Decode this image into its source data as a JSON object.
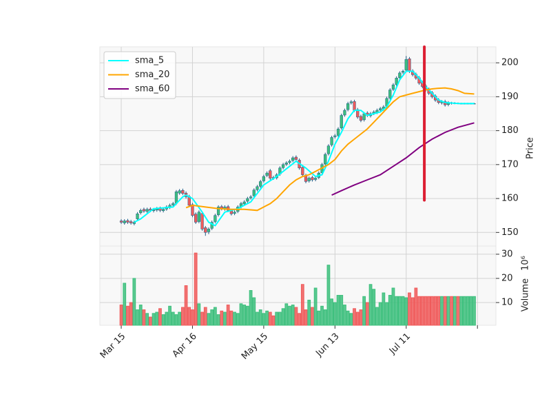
{
  "chart_data": {
    "type": "candlestick",
    "ylabel": "Price",
    "ylim": [
      146,
      204.7
    ],
    "yticks": [
      150,
      160,
      170,
      180,
      190,
      200
    ],
    "xlim": [
      -6.6,
      115.7
    ],
    "xticks": [
      {
        "value": 0,
        "label": "Mar 15"
      },
      {
        "value": 22,
        "label": "Apr 16"
      },
      {
        "value": 44,
        "label": "May 15"
      },
      {
        "value": 66,
        "label": "Jun 13"
      },
      {
        "value": 88,
        "label": "Jul 11"
      },
      {
        "value": 110,
        "label": null
      }
    ],
    "grid": true,
    "legend": "upper left",
    "up_color": "#3dbf7d",
    "down_color": "#f05a5a",
    "wick_color": "#1f5a85",
    "open": [
      153.4,
      152.8,
      153.5,
      153.2,
      152.6,
      154.0,
      155.8,
      156.8,
      156.2,
      156.9,
      156.4,
      156.6,
      157.1,
      156.4,
      156.9,
      157.4,
      158.1,
      158.6,
      161.6,
      162.4,
      161.6,
      160.6,
      158.2,
      155.4,
      153.2,
      155.6,
      151.4,
      150.2,
      151.2,
      153.2,
      155.2,
      157.6,
      156.9,
      157.6,
      156.4,
      155.6,
      156.2,
      157.6,
      158.4,
      159.2,
      160.2,
      160.8,
      162.6,
      163.6,
      165.2,
      166.8,
      168.2,
      166.2,
      166.1,
      167.2,
      169.1,
      170.1,
      170.6,
      171.2,
      172.2,
      171.3,
      169.2,
      166.8,
      165.2,
      166.2,
      165.6,
      166.2,
      167.6,
      170.2,
      173.2,
      175.8,
      178.2,
      178.6,
      180.8,
      184.6,
      186.2,
      188.2,
      188.6,
      186.2,
      184.2,
      183.2,
      185.2,
      184.4,
      185.1,
      185.4,
      186.1,
      186.4,
      187.2,
      189.6,
      192.2,
      193.6,
      195.6,
      197.2,
      197.8,
      201.2,
      197.6,
      196.6,
      195.6,
      194.2,
      193.2,
      192.2,
      191.2,
      190.2,
      189.1,
      188.2,
      188.6,
      187.7,
      188.2,
      188.0,
      188.1,
      188.0,
      188.0,
      188.0,
      188.0,
      188.0
    ],
    "high": [
      153.9,
      153.9,
      154.0,
      153.7,
      153.5,
      156.0,
      157.0,
      157.3,
      157.3,
      157.4,
      157.2,
      157.5,
      157.6,
      157.3,
      158.0,
      158.5,
      159.0,
      162.5,
      162.8,
      162.9,
      162.1,
      161.1,
      158.7,
      155.9,
      156.5,
      156.1,
      151.9,
      151.5,
      153.5,
      155.5,
      158.0,
      158.1,
      158.0,
      158.1,
      156.9,
      156.5,
      158.0,
      159.0,
      159.5,
      160.5,
      161.0,
      163.0,
      164.0,
      165.5,
      167.0,
      168.0,
      168.7,
      166.7,
      167.5,
      169.5,
      170.5,
      171.0,
      171.5,
      172.5,
      172.7,
      171.8,
      169.7,
      167.3,
      166.5,
      166.7,
      166.5,
      168.0,
      170.5,
      173.5,
      176.0,
      178.5,
      179.0,
      181.0,
      185.0,
      186.5,
      188.5,
      189.0,
      189.1,
      186.7,
      184.7,
      185.5,
      185.7,
      185.5,
      186.0,
      186.5,
      187.0,
      187.5,
      190.0,
      192.5,
      194.0,
      196.0,
      197.5,
      198.0,
      202.0,
      201.7,
      198.1,
      197.1,
      196.1,
      194.7,
      193.7,
      192.7,
      191.7,
      190.7,
      189.6,
      189.0,
      189.1,
      188.7,
      188.5,
      188.4,
      188.3,
      188.2,
      188.2,
      188.2,
      188.2,
      188.2
    ],
    "low": [
      152.5,
      152.3,
      152.5,
      152.3,
      152.1,
      153.5,
      155.3,
      155.8,
      155.7,
      156.0,
      155.9,
      156.1,
      156.0,
      155.9,
      156.4,
      156.9,
      157.6,
      158.1,
      161.1,
      161.0,
      160.0,
      157.5,
      154.5,
      152.5,
      152.7,
      150.5,
      149.0,
      149.5,
      150.7,
      152.7,
      154.7,
      156.5,
      156.4,
      156.0,
      155.0,
      155.1,
      155.7,
      157.1,
      157.9,
      158.7,
      159.7,
      160.3,
      162.1,
      163.1,
      164.7,
      166.3,
      165.5,
      165.5,
      165.6,
      166.7,
      168.6,
      169.6,
      170.1,
      170.7,
      171.0,
      168.5,
      166.5,
      164.5,
      164.7,
      165.0,
      165.1,
      165.7,
      167.1,
      169.7,
      172.7,
      175.3,
      177.7,
      178.1,
      180.3,
      184.1,
      185.7,
      187.7,
      185.5,
      183.5,
      182.5,
      182.7,
      184.0,
      183.9,
      184.6,
      184.9,
      185.6,
      185.9,
      186.7,
      189.1,
      191.7,
      193.1,
      195.1,
      196.7,
      197.3,
      197.0,
      196.0,
      195.0,
      193.5,
      192.5,
      191.5,
      190.5,
      189.5,
      188.5,
      187.8,
      187.7,
      187.1,
      187.2,
      187.7,
      187.8,
      187.8,
      187.8,
      187.8,
      187.8,
      187.8,
      187.8
    ],
    "close": [
      153.0,
      153.4,
      153.0,
      152.8,
      153.0,
      155.5,
      156.5,
      156.3,
      156.8,
      156.5,
      156.7,
      157.0,
      156.5,
      156.8,
      157.5,
      158.0,
      158.5,
      162.0,
      162.3,
      161.5,
      160.5,
      158.0,
      155.0,
      153.0,
      156.0,
      151.0,
      150.0,
      151.0,
      153.0,
      155.0,
      157.5,
      157.0,
      157.5,
      156.5,
      155.5,
      156.0,
      157.5,
      158.5,
      159.0,
      160.0,
      160.5,
      162.5,
      163.5,
      165.0,
      166.5,
      167.5,
      166.0,
      166.0,
      167.0,
      169.0,
      170.0,
      170.5,
      171.0,
      172.0,
      171.5,
      169.0,
      167.0,
      165.0,
      166.0,
      165.5,
      166.0,
      167.5,
      170.0,
      173.0,
      175.5,
      178.0,
      178.5,
      180.5,
      184.5,
      186.0,
      188.0,
      188.5,
      186.0,
      184.0,
      183.0,
      185.0,
      184.5,
      185.0,
      185.5,
      186.0,
      186.5,
      187.0,
      189.5,
      192.0,
      193.5,
      195.5,
      197.0,
      197.5,
      201.0,
      197.5,
      196.5,
      195.5,
      194.0,
      193.0,
      192.0,
      191.0,
      190.0,
      189.0,
      188.3,
      188.5,
      187.6,
      188.2,
      188.0,
      188.1,
      188.0,
      188.0,
      188.0,
      188.0,
      188.0,
      188.0
    ],
    "volume": {
      "label": "Volume",
      "offset_label": "10⁶",
      "ylim": [
        0.6,
        33.4
      ],
      "yticks": [
        10,
        20,
        30
      ],
      "values": [
        9,
        18,
        8.5,
        10,
        20,
        7,
        9,
        7,
        5.5,
        4,
        5.5,
        6,
        7.5,
        5,
        6,
        8.5,
        6,
        5,
        6,
        8,
        17,
        8,
        7,
        30.5,
        9.5,
        6,
        8,
        5.5,
        7,
        8,
        5,
        6.5,
        6,
        9,
        6.5,
        6,
        5.5,
        9.5,
        9,
        8.5,
        15,
        12,
        6,
        7,
        5.5,
        6.5,
        6,
        4.5,
        6,
        6,
        7.5,
        9.5,
        8.5,
        9,
        8,
        5.5,
        17.5,
        7,
        11,
        8,
        16,
        6.5,
        8.5,
        7,
        25.5,
        11.5,
        10,
        13,
        13,
        9,
        6.5,
        5.5,
        7.5,
        6,
        7,
        12.5,
        10,
        17.5,
        15.5,
        8,
        10,
        14,
        10,
        13,
        16,
        12.5,
        12.5,
        12.5,
        12,
        14,
        12,
        16,
        12.5,
        12.5,
        12.5,
        12.5,
        12.5,
        12.5,
        12.5,
        12.5,
        12.5,
        12.5,
        12.5,
        12.5,
        12.5,
        12.5,
        12.5,
        12.5,
        12.5,
        12.5
      ]
    },
    "series": [
      {
        "name": "sma_5",
        "color": "#00ffff",
        "x": [
          4,
          6,
          10,
          16,
          19,
          20,
          22,
          25,
          27,
          29,
          32,
          36,
          40,
          44,
          48,
          52,
          54,
          57,
          60,
          62,
          64,
          66,
          68,
          70,
          72,
          74,
          76,
          78,
          80,
          82,
          84,
          86,
          88,
          90,
          92,
          94,
          96,
          98,
          100,
          104,
          109
        ],
        "values": [
          153,
          154,
          157,
          157.5,
          160.5,
          161,
          160,
          156,
          153,
          152,
          156,
          157,
          159,
          164,
          166.5,
          169.5,
          171,
          169,
          166.5,
          167,
          171,
          176,
          179.5,
          183.5,
          186,
          186,
          184.5,
          185,
          185.5,
          187,
          190.5,
          195,
          197.5,
          197.5,
          195.5,
          193,
          191,
          189,
          188.3,
          188,
          188
        ]
      },
      {
        "name": "sma_20",
        "color": "#ffa500",
        "x": [
          20,
          22,
          26,
          30,
          34,
          38,
          42,
          44,
          46,
          48,
          50,
          52,
          54,
          56,
          58,
          60,
          62,
          64,
          66,
          68,
          70,
          72,
          74,
          76,
          78,
          80,
          82,
          84,
          86,
          88,
          90,
          92,
          94,
          96,
          98,
          100,
          102,
          104,
          106,
          109
        ],
        "values": [
          157.3,
          158,
          157.5,
          157,
          156.8,
          156.8,
          156.5,
          157.5,
          158.5,
          160,
          162,
          164,
          165.5,
          166.5,
          167,
          168,
          169,
          170,
          171.5,
          174,
          176,
          177.5,
          179,
          180.5,
          182.5,
          184.5,
          186.5,
          188.5,
          190,
          190.5,
          191,
          191.5,
          192,
          192.3,
          192.5,
          192.6,
          192.3,
          191.8,
          191,
          190.8
        ]
      },
      {
        "name": "sma_60",
        "color": "#800080",
        "x": [
          65,
          68,
          72,
          76,
          80,
          84,
          88,
          92,
          96,
          100,
          104,
          109
        ],
        "values": [
          161,
          162.3,
          164,
          165.5,
          167,
          169.5,
          172,
          175,
          177.5,
          179.5,
          181,
          182.3
        ]
      }
    ],
    "vline": {
      "x": 93.6,
      "ylim": [
        159.5,
        204.7
      ],
      "color": "#dc1e32"
    }
  }
}
